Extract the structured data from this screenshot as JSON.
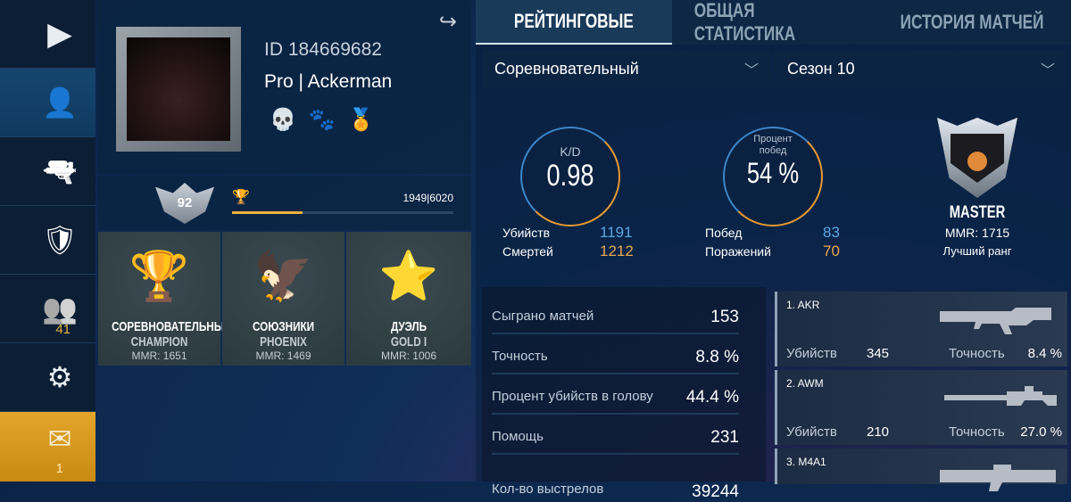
{
  "sidebar": {
    "items": [
      {
        "name": "play",
        "icon": "play-icon",
        "glyph": "▶"
      },
      {
        "name": "profile",
        "icon": "user-icon",
        "glyph": "👤",
        "active": true
      },
      {
        "name": "weapons",
        "icon": "pistol-icon",
        "glyph": "🔫"
      },
      {
        "name": "clan",
        "icon": "shield-icon",
        "glyph": "🛡"
      },
      {
        "name": "friends",
        "icon": "friends-icon",
        "glyph": "👥",
        "badge": "41"
      },
      {
        "name": "settings",
        "icon": "gear-icon",
        "glyph": "⚙"
      },
      {
        "name": "mail",
        "icon": "mail-icon",
        "glyph": "✉",
        "badge": "1"
      }
    ]
  },
  "profile": {
    "id": "ID 184669682",
    "name": "Pro | Ackerman",
    "level": "92",
    "xp": "1949|6020",
    "xp_progress": 0.32,
    "ranks": [
      {
        "mode": "СОРЕВНОВАТЕЛЬНЫЙ",
        "rank": "CHAMPION",
        "mmr": "MMR: 1651"
      },
      {
        "mode": "СОЮЗНИКИ",
        "rank": "PHOENIX",
        "mmr": "MMR: 1469"
      },
      {
        "mode": "ДУЭЛЬ",
        "rank": "GOLD I",
        "mmr": "MMR: 1006"
      }
    ]
  },
  "tabs": [
    "РЕЙТИНГОВЫЕ",
    "ОБЩАЯ СТАТИСТИКА",
    "ИСТОРИЯ МАТЧЕЙ"
  ],
  "filters": {
    "mode": "Соревновательный",
    "season": "Сезон 10"
  },
  "kd": {
    "label": "K/D",
    "value": "0.98",
    "kills_label": "Убийств",
    "kills": "1191",
    "deaths_label": "Смертей",
    "deaths": "1212"
  },
  "winrate": {
    "label": "Процент побед",
    "value": "54 %",
    "wins_label": "Побед",
    "wins": "83",
    "losses_label": "Поражений",
    "losses": "70"
  },
  "best": {
    "rank": "MASTER",
    "mmr": "MMR: 1715",
    "label": "Лучший ранг"
  },
  "stats": [
    {
      "k": "Сыграно матчей",
      "v": "153"
    },
    {
      "k": "Точность",
      "v": "8.8 %"
    },
    {
      "k": "Процент убийств в голову",
      "v": "44.4 %"
    },
    {
      "k": "Помощь",
      "v": "231"
    },
    {
      "k": "Кол-во выстрелов",
      "v": "39244"
    }
  ],
  "weapons": [
    {
      "name": "1. AKR",
      "kills_label": "Убийств",
      "kills": "345",
      "acc_label": "Точность",
      "acc": "8.4 %"
    },
    {
      "name": "2. AWM",
      "kills_label": "Убийств",
      "kills": "210",
      "acc_label": "Точность",
      "acc": "27.0 %"
    },
    {
      "name": "3. M4A1"
    }
  ],
  "colors": {
    "accent": "#e3a52a",
    "blue_value": "#5aa6e6",
    "orange_value": "#e9a850"
  }
}
